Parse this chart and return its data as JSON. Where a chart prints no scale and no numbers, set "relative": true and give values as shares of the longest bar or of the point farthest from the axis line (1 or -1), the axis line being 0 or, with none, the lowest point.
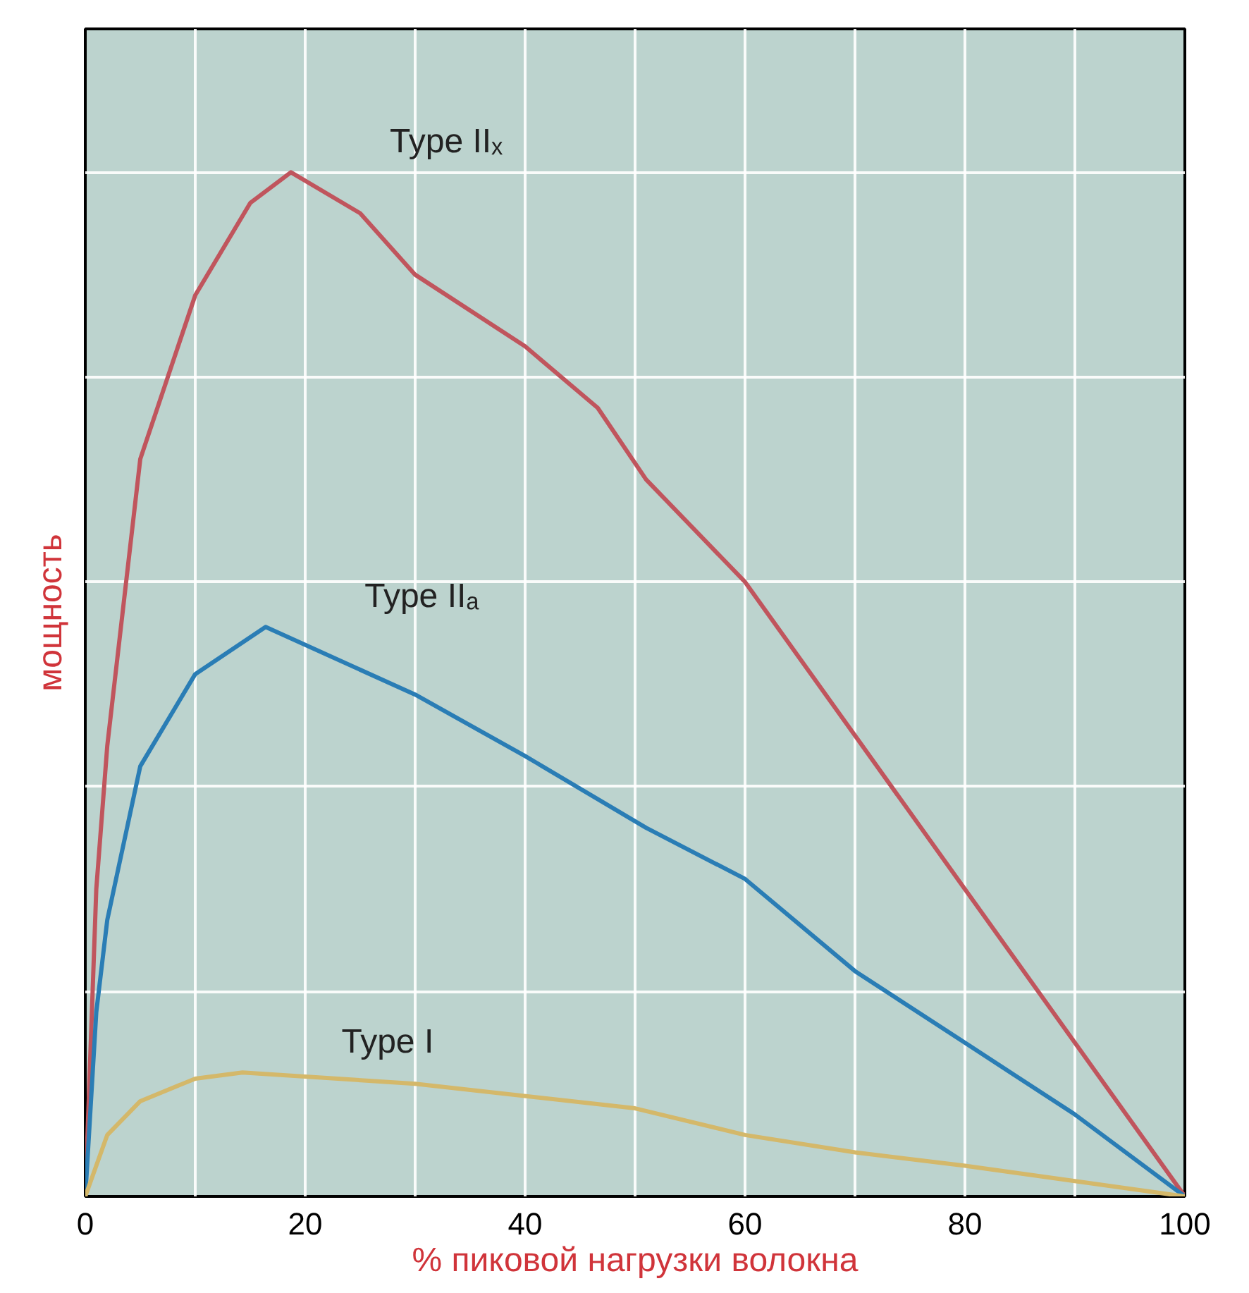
{
  "chart_data": {
    "type": "line",
    "xlabel": "% пиковой нагрузки волокна",
    "ylabel": "мощность",
    "relative": true,
    "grid": true,
    "marker": "none",
    "line_style": "solid",
    "xlim": [
      0,
      100
    ],
    "xticks": [
      0,
      {
        "value": 10,
        "label": null
      },
      20,
      {
        "value": 30,
        "label": null
      },
      40,
      {
        "value": 50,
        "label": null
      },
      60,
      {
        "value": 70,
        "label": null
      },
      80,
      {
        "value": 90,
        "label": null
      },
      100
    ],
    "series": [
      {
        "name": "Type IIₓ",
        "color": "#c0555d",
        "x": [
          0,
          1,
          2,
          5,
          10,
          15,
          18.7,
          25,
          30,
          40,
          46.6,
          51,
          60,
          70,
          80,
          90,
          100
        ],
        "values": [
          0,
          0.3,
          0.44,
          0.72,
          0.88,
          0.97,
          1,
          0.96,
          0.9,
          0.83,
          0.77,
          0.7,
          0.6,
          0.45,
          0.3,
          0.15,
          0
        ]
      },
      {
        "name": "Type IIₐ",
        "color": "#2a7db5",
        "x": [
          0,
          1,
          2,
          5,
          10,
          16.4,
          30,
          40,
          51,
          60,
          70,
          80,
          90,
          100
        ],
        "values": [
          0,
          0.18,
          0.27,
          0.42,
          0.51,
          0.556,
          0.49,
          0.43,
          0.36,
          0.31,
          0.22,
          0.15,
          0.08,
          0
        ]
      },
      {
        "name": "Type I",
        "color": "#d4b86a",
        "x": [
          0,
          2,
          5,
          10,
          14.3,
          30,
          50,
          60,
          70,
          80,
          90,
          100
        ],
        "values": [
          0,
          0.06,
          0.093,
          0.115,
          0.121,
          0.11,
          0.086,
          0.06,
          0.043,
          0.03,
          0.015,
          0
        ]
      }
    ]
  }
}
